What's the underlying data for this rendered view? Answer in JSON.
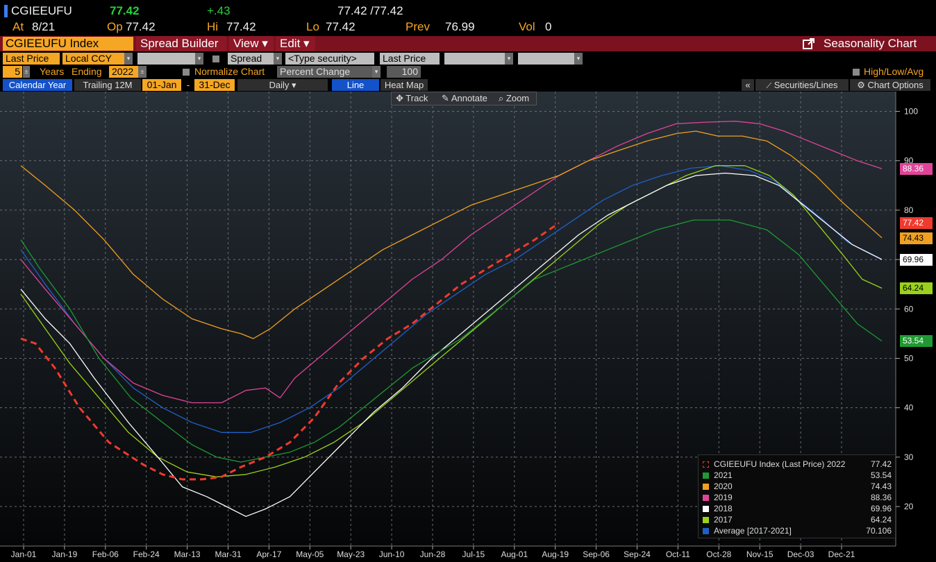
{
  "quote": {
    "ticker": "CGIEEUFU",
    "last": "77.42",
    "change": "+.43",
    "bid_ask": "77.42 /77.42",
    "at_label": "At",
    "at_value": "8/21",
    "op_label": "Op",
    "op_value": "77.42",
    "hi_label": "Hi",
    "hi_value": "77.42",
    "lo_label": "Lo",
    "lo_value": "77.42",
    "prev_label": "Prev",
    "prev_value": "76.99",
    "vol_label": "Vol",
    "vol_value": "0"
  },
  "menubar": {
    "security": "CGIEEUFU Index",
    "spread_builder": "Spread Builder",
    "view": "View ▾",
    "edit": "Edit ▾",
    "title": "Seasonality Chart"
  },
  "controls": {
    "field1": "Last Price",
    "currency": "Local CCY",
    "spread": "Spread",
    "type_security": "<Type security>",
    "field2": "Last Price",
    "years": "5",
    "years_label": "Years",
    "ending_label": "Ending",
    "ending_year": "2022",
    "normalize_label": "Normalize Chart",
    "normalize_mode": "Percent Change",
    "normalize_base": "100",
    "hla_label": "High/Low/Avg"
  },
  "tabs": {
    "calendar_year": "Calendar Year",
    "trailing": "Trailing 12M",
    "start": "01-Jan",
    "dash": "-",
    "end": "31-Dec",
    "periodicity": "Daily ▾",
    "line": "Line",
    "heatmap": "Heat Map",
    "collapse": "«",
    "securities_lines": "Securities/Lines",
    "chart_options": "Chart Options"
  },
  "toolbar": {
    "track": "Track",
    "annotate": "Annotate",
    "zoom": "Zoom"
  },
  "colors": {
    "y2022": "#f03a2e",
    "y2021": "#1f9a32",
    "y2020": "#f0a020",
    "y2019": "#e0449a",
    "y2018": "#ffffff",
    "y2017": "#9ad21a",
    "average": "#1e60c8"
  },
  "chart_data": {
    "type": "line",
    "x_ticks": [
      "Jan-01",
      "Jan-19",
      "Feb-06",
      "Feb-24",
      "Mar-13",
      "Mar-31",
      "Apr-17",
      "May-05",
      "May-23",
      "Jun-10",
      "Jun-28",
      "Jul-15",
      "Aug-01",
      "Aug-19",
      "Sep-06",
      "Sep-24",
      "Oct-11",
      "Oct-28",
      "Nov-15",
      "Dec-03",
      "Dec-21"
    ],
    "y_ticks": [
      20,
      30,
      40,
      50,
      60,
      70,
      80,
      90,
      100
    ],
    "ylim": [
      12,
      104
    ],
    "grid": true,
    "legend_position": "bottom-right",
    "series": [
      {
        "key": "y2022",
        "name": "CGIEEUFU Index (Last Price) 2022",
        "last": "77.42",
        "dashed": true,
        "points": [
          [
            0,
            54
          ],
          [
            6,
            53
          ],
          [
            14,
            48
          ],
          [
            24,
            40
          ],
          [
            36,
            33
          ],
          [
            50,
            28.5
          ],
          [
            58,
            26.5
          ],
          [
            66,
            25.5
          ],
          [
            74,
            25.5
          ],
          [
            82,
            26
          ],
          [
            90,
            28
          ],
          [
            100,
            30
          ],
          [
            110,
            33
          ],
          [
            120,
            38
          ],
          [
            130,
            45
          ],
          [
            140,
            50
          ],
          [
            150,
            54
          ],
          [
            160,
            57
          ],
          [
            170,
            61
          ],
          [
            180,
            65
          ],
          [
            190,
            68
          ],
          [
            200,
            71
          ],
          [
            210,
            74
          ],
          [
            220,
            77.4
          ]
        ]
      },
      {
        "key": "y2021",
        "name": "2021",
        "last": "53.54",
        "points": [
          [
            0,
            74
          ],
          [
            8,
            68
          ],
          [
            20,
            60
          ],
          [
            32,
            50
          ],
          [
            45,
            42
          ],
          [
            58,
            37
          ],
          [
            70,
            32.5
          ],
          [
            80,
            30
          ],
          [
            90,
            29
          ],
          [
            100,
            30
          ],
          [
            110,
            31
          ],
          [
            120,
            33
          ],
          [
            130,
            36
          ],
          [
            140,
            40
          ],
          [
            150,
            44
          ],
          [
            160,
            48
          ],
          [
            170,
            51
          ],
          [
            180,
            54
          ],
          [
            190,
            58
          ],
          [
            200,
            62
          ],
          [
            210,
            66
          ],
          [
            220,
            68
          ],
          [
            230,
            70
          ],
          [
            240,
            72
          ],
          [
            250,
            74
          ],
          [
            260,
            76
          ],
          [
            275,
            78
          ],
          [
            290,
            78
          ],
          [
            305,
            76
          ],
          [
            318,
            71
          ],
          [
            330,
            64
          ],
          [
            342,
            57
          ],
          [
            352,
            53.5
          ]
        ]
      },
      {
        "key": "y2020",
        "name": "2020",
        "last": "74.43",
        "points": [
          [
            0,
            89
          ],
          [
            10,
            85
          ],
          [
            22,
            80
          ],
          [
            34,
            74
          ],
          [
            46,
            67
          ],
          [
            58,
            62
          ],
          [
            70,
            58
          ],
          [
            82,
            56
          ],
          [
            90,
            55
          ],
          [
            95,
            54
          ],
          [
            102,
            56
          ],
          [
            112,
            60
          ],
          [
            124,
            64
          ],
          [
            136,
            68
          ],
          [
            148,
            72
          ],
          [
            160,
            75
          ],
          [
            172,
            78
          ],
          [
            184,
            81
          ],
          [
            196,
            83
          ],
          [
            208,
            85
          ],
          [
            220,
            87
          ],
          [
            232,
            90
          ],
          [
            244,
            92
          ],
          [
            256,
            94
          ],
          [
            268,
            95.5
          ],
          [
            276,
            96
          ],
          [
            285,
            95
          ],
          [
            295,
            95
          ],
          [
            305,
            94
          ],
          [
            315,
            91
          ],
          [
            325,
            87
          ],
          [
            335,
            82
          ],
          [
            345,
            77.5
          ],
          [
            352,
            74.4
          ]
        ]
      },
      {
        "key": "y2019",
        "name": "2019",
        "last": "88.36",
        "points": [
          [
            0,
            70
          ],
          [
            10,
            64
          ],
          [
            22,
            57
          ],
          [
            34,
            50
          ],
          [
            46,
            45
          ],
          [
            58,
            42.5
          ],
          [
            70,
            41
          ],
          [
            82,
            41
          ],
          [
            92,
            43.5
          ],
          [
            100,
            44
          ],
          [
            106,
            42
          ],
          [
            112,
            46
          ],
          [
            124,
            51
          ],
          [
            136,
            56
          ],
          [
            148,
            61
          ],
          [
            160,
            66
          ],
          [
            172,
            70
          ],
          [
            184,
            75
          ],
          [
            196,
            79
          ],
          [
            208,
            83
          ],
          [
            220,
            87
          ],
          [
            232,
            90
          ],
          [
            244,
            93
          ],
          [
            256,
            95.5
          ],
          [
            268,
            97.5
          ],
          [
            280,
            97.8
          ],
          [
            292,
            98
          ],
          [
            302,
            97.5
          ],
          [
            312,
            96
          ],
          [
            322,
            94
          ],
          [
            332,
            92
          ],
          [
            342,
            90
          ],
          [
            352,
            88.4
          ]
        ]
      },
      {
        "key": "y2018",
        "name": "2018",
        "last": "69.96",
        "points": [
          [
            0,
            64
          ],
          [
            10,
            58
          ],
          [
            20,
            53
          ],
          [
            30,
            46
          ],
          [
            44,
            37
          ],
          [
            56,
            30
          ],
          [
            66,
            24
          ],
          [
            76,
            22
          ],
          [
            84,
            20
          ],
          [
            92,
            18
          ],
          [
            100,
            19.5
          ],
          [
            110,
            22
          ],
          [
            120,
            27
          ],
          [
            132,
            33
          ],
          [
            144,
            39
          ],
          [
            156,
            44
          ],
          [
            168,
            50
          ],
          [
            180,
            55
          ],
          [
            192,
            60
          ],
          [
            204,
            65
          ],
          [
            216,
            70
          ],
          [
            228,
            75
          ],
          [
            240,
            79
          ],
          [
            252,
            82
          ],
          [
            264,
            85
          ],
          [
            276,
            87
          ],
          [
            288,
            87.5
          ],
          [
            300,
            87
          ],
          [
            310,
            85
          ],
          [
            320,
            81
          ],
          [
            330,
            77
          ],
          [
            340,
            73
          ],
          [
            352,
            70
          ]
        ]
      },
      {
        "key": "y2017",
        "name": "2017",
        "last": "64.24",
        "points": [
          [
            0,
            63
          ],
          [
            10,
            56
          ],
          [
            20,
            49
          ],
          [
            32,
            42
          ],
          [
            44,
            35
          ],
          [
            56,
            30
          ],
          [
            68,
            27
          ],
          [
            80,
            26
          ],
          [
            92,
            26.5
          ],
          [
            104,
            28
          ],
          [
            116,
            30
          ],
          [
            128,
            33
          ],
          [
            140,
            37
          ],
          [
            152,
            42
          ],
          [
            164,
            47
          ],
          [
            176,
            52
          ],
          [
            188,
            57
          ],
          [
            200,
            62
          ],
          [
            212,
            67
          ],
          [
            224,
            72
          ],
          [
            236,
            77
          ],
          [
            248,
            81
          ],
          [
            260,
            84
          ],
          [
            272,
            87
          ],
          [
            284,
            89
          ],
          [
            296,
            89
          ],
          [
            306,
            87
          ],
          [
            316,
            83
          ],
          [
            326,
            77
          ],
          [
            336,
            71
          ],
          [
            344,
            66
          ],
          [
            352,
            64.2
          ]
        ]
      },
      {
        "key": "average",
        "name": "Average  [2017-2021]",
        "last": "70.106",
        "points": [
          [
            0,
            72
          ],
          [
            10,
            65
          ],
          [
            22,
            57
          ],
          [
            34,
            50
          ],
          [
            46,
            44
          ],
          [
            58,
            40
          ],
          [
            70,
            37
          ],
          [
            82,
            35
          ],
          [
            94,
            35
          ],
          [
            106,
            37
          ],
          [
            118,
            40
          ],
          [
            130,
            44
          ],
          [
            142,
            49
          ],
          [
            154,
            54
          ],
          [
            166,
            59
          ],
          [
            178,
            63
          ],
          [
            190,
            67
          ],
          [
            202,
            70
          ],
          [
            214,
            74
          ],
          [
            226,
            78
          ],
          [
            238,
            82
          ],
          [
            250,
            85
          ],
          [
            262,
            87
          ],
          [
            274,
            88.5
          ],
          [
            286,
            89
          ],
          [
            298,
            88
          ],
          [
            308,
            86
          ],
          [
            318,
            82
          ],
          [
            328,
            78
          ],
          [
            338,
            73.5
          ],
          [
            352,
            70.1
          ]
        ]
      }
    ],
    "last_labels": [
      "88.36",
      "77.42",
      "74.43",
      "69.96",
      "64.24",
      "53.54"
    ]
  }
}
